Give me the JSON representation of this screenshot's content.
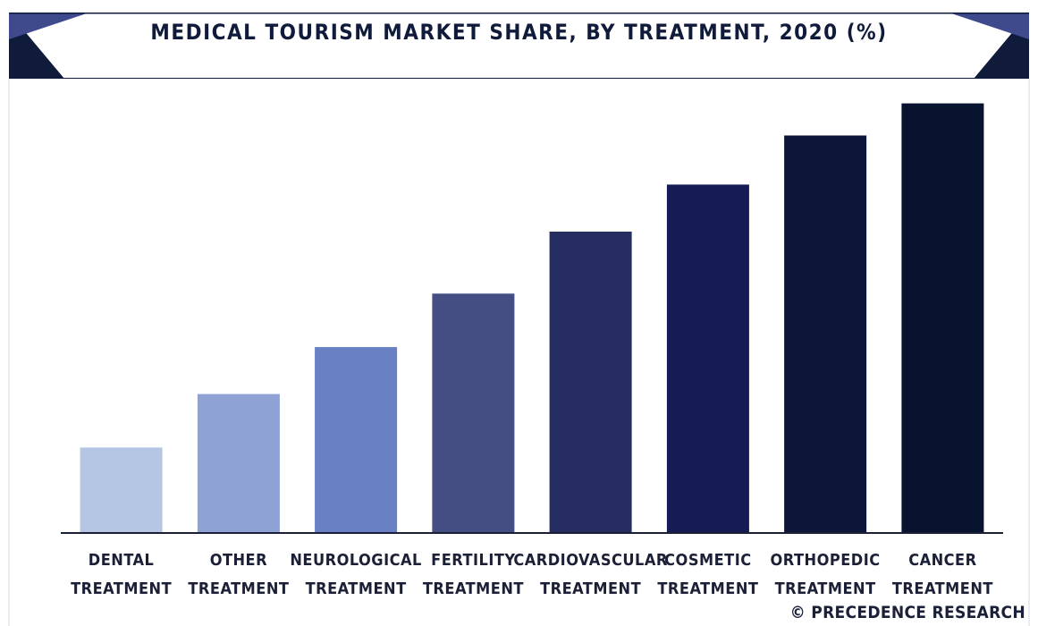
{
  "title": "MEDICAL TOURISM MARKET SHARE, BY TREATMENT, 2020 (%)",
  "credit": "© PRECEDENCE RESEARCH",
  "colors": {
    "header_bar": "#101a3a",
    "header_accent": "#3e4a8c",
    "axis": "#1c2036"
  },
  "chart_data": {
    "type": "bar",
    "title": "MEDICAL TOURISM MARKET SHARE, BY TREATMENT, 2020 (%)",
    "xlabel": "",
    "ylabel": "",
    "ylim": [
      0,
      100
    ],
    "grid": false,
    "categories": [
      [
        "DENTAL",
        "TREATMENT"
      ],
      [
        "OTHER",
        "TREATMENT"
      ],
      [
        "NEUROLOGICAL",
        "TREATMENT"
      ],
      [
        "FERTILITY",
        "TREATMENT"
      ],
      [
        "CARDIOVASCULAR",
        "TREATMENT"
      ],
      [
        "COSMETIC",
        "TREATMENT"
      ],
      [
        "ORTHOPEDIC",
        "TREATMENT"
      ],
      [
        "CANCER",
        "TREATMENT"
      ]
    ],
    "values": [
      20,
      32.5,
      43.5,
      56,
      70.5,
      81.5,
      93,
      100.5
    ],
    "colors": [
      "#b5c5e4",
      "#8ea2d6",
      "#6880c4",
      "#454e82",
      "#262d60",
      "#141b55",
      "#0c1638",
      "#08132f"
    ]
  }
}
